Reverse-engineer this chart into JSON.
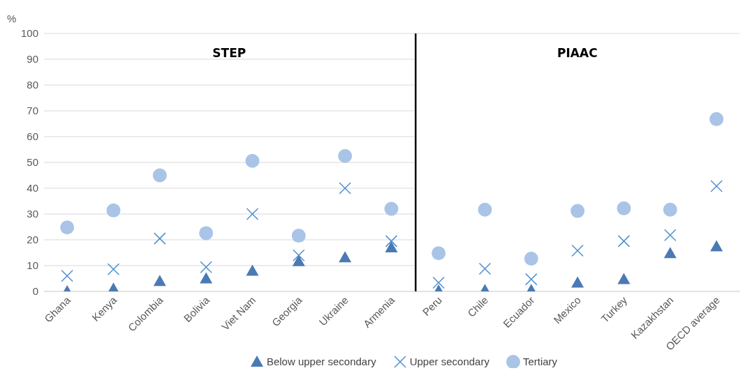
{
  "chart_data": [
    {
      "type": "scatter",
      "title": "STEP",
      "ylabel": "%",
      "categories": [
        "Ghana",
        "Kenya",
        "Colombia",
        "Bolivia",
        "Viet Nam",
        "Georgia",
        "Ukraine",
        "Armenia"
      ],
      "series": [
        {
          "color": "#4a7ab4",
          "marker": "triangle",
          "values": [
            0,
            1,
            4,
            5,
            8,
            11.7,
            13.2,
            17
          ]
        },
        {
          "color": "#4f8fd0",
          "marker": "cross",
          "values": [
            6,
            8.6,
            20.5,
            9.4,
            30,
            14,
            40,
            19.5
          ]
        },
        {
          "color": "#a9c4e6",
          "marker": "circle",
          "values": [
            24.8,
            31.4,
            45,
            22.6,
            50.6,
            21.6,
            52.5,
            32
          ]
        }
      ],
      "ylim": [
        0,
        100
      ],
      "yticks": [
        0,
        10,
        20,
        30,
        40,
        50,
        60,
        70,
        80,
        90,
        100
      ],
      "grid": "y"
    },
    {
      "type": "scatter",
      "title": "PIAAC",
      "categories": [
        "Peru",
        "Chile",
        "Ecuador",
        "Mexico",
        "Turkey",
        "Kazakhstan",
        "OECD average"
      ],
      "series": [
        {
          "name": "Below upper secondary",
          "color": "#4a7ab4",
          "marker": "triangle",
          "values": [
            0.3,
            0.5,
            0.5,
            3.4,
            4.7,
            14.8,
            17.4
          ]
        },
        {
          "name": "Upper secondary",
          "color": "#4f8fd0",
          "marker": "cross",
          "values": [
            3.4,
            8.8,
            4.7,
            15.8,
            19.5,
            21.8,
            40.8
          ]
        },
        {
          "name": "Tertiary",
          "color": "#a9c4e6",
          "marker": "circle",
          "values": [
            14.8,
            31.7,
            12.7,
            31.2,
            32.2,
            31.7,
            66.8
          ]
        }
      ],
      "ylim": [
        0,
        100
      ],
      "yticks": [
        0,
        10,
        20,
        30,
        40,
        50,
        60,
        70,
        80,
        90,
        100
      ],
      "grid": "y",
      "tick_labels": "x",
      "legend": "bottom"
    }
  ]
}
